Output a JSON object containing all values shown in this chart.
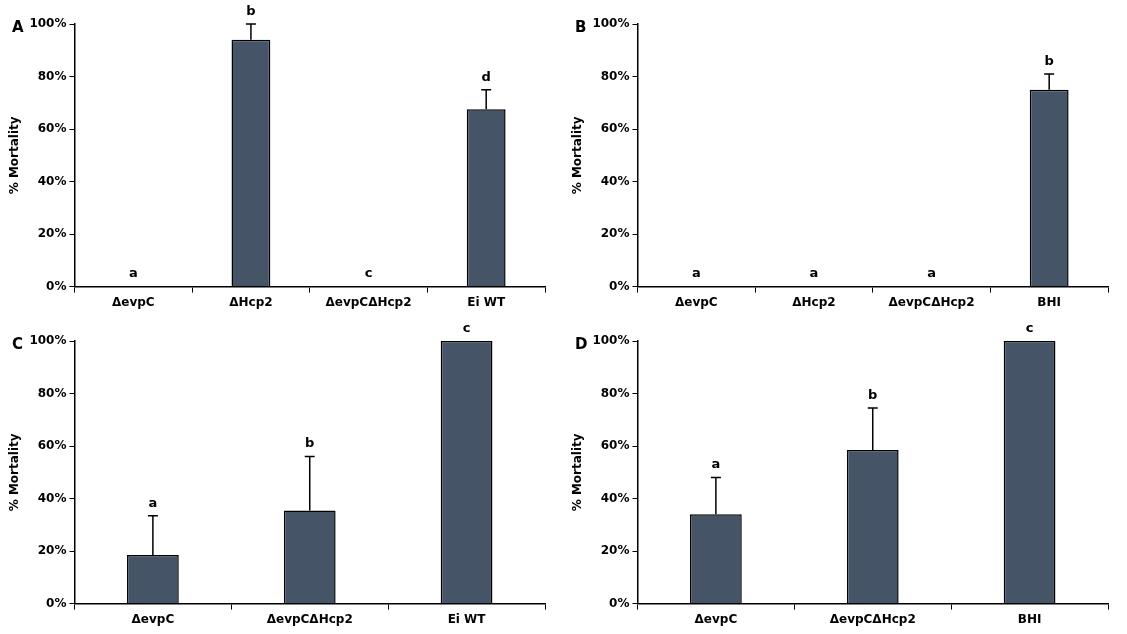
{
  "chart_data": [
    {
      "type": "bar",
      "title": "A",
      "ylabel": "% Mortality",
      "categories": [
        "ΔevpC",
        "ΔHcp2",
        "ΔevpCΔHcp2",
        "Ei WT"
      ],
      "values": [
        0,
        94,
        0,
        67.5
      ],
      "errors": [
        null,
        [
          94,
          100
        ],
        null,
        [
          67.5,
          75
        ]
      ],
      "color": "#465468",
      "ylim": [
        0,
        100
      ],
      "yticks": [
        {
          "value": 0,
          "label": "0%"
        },
        {
          "value": 20,
          "label": "20%"
        },
        {
          "value": 40,
          "label": "40%"
        },
        {
          "value": 60,
          "label": "60%"
        },
        {
          "value": 80,
          "label": "80%"
        },
        {
          "value": 100,
          "label": "100%"
        }
      ],
      "grid": false,
      "legend": false,
      "annotations": [
        {
          "text": "a",
          "x": "ΔevpC",
          "y": 0
        },
        {
          "text": "b",
          "x": "ΔHcp2",
          "y": 100
        },
        {
          "text": "c",
          "x": "ΔevpCΔHcp2",
          "y": 0
        },
        {
          "text": "d",
          "x": "Ei WT",
          "y": 75
        }
      ]
    },
    {
      "type": "bar",
      "title": "B",
      "ylabel": "% Mortality",
      "categories": [
        "ΔevpC",
        "ΔHcp2",
        "ΔevpCΔHcp2",
        "BHI"
      ],
      "values": [
        0,
        0,
        0,
        75
      ],
      "errors": [
        null,
        null,
        null,
        [
          75,
          81
        ]
      ],
      "color": "#465468",
      "ylim": [
        0,
        100
      ],
      "yticks": [
        {
          "value": 0,
          "label": "0%"
        },
        {
          "value": 20,
          "label": "20%"
        },
        {
          "value": 40,
          "label": "40%"
        },
        {
          "value": 60,
          "label": "60%"
        },
        {
          "value": 80,
          "label": "80%"
        },
        {
          "value": 100,
          "label": "100%"
        }
      ],
      "grid": false,
      "legend": false,
      "annotations": [
        {
          "text": "a",
          "x": "ΔevpC",
          "y": 0
        },
        {
          "text": "a",
          "x": "ΔHcp2",
          "y": 0
        },
        {
          "text": "a",
          "x": "ΔevpCΔHcp2",
          "y": 0
        },
        {
          "text": "b",
          "x": "BHI",
          "y": 81
        }
      ]
    },
    {
      "type": "bar",
      "title": "C",
      "ylabel": "% Mortality",
      "categories": [
        "ΔevpC",
        "ΔevpCΔHcp2",
        "Ei WT"
      ],
      "values": [
        18.5,
        35.5,
        100
      ],
      "errors": [
        [
          18.5,
          33.5
        ],
        [
          35.5,
          56
        ],
        null
      ],
      "color": "#465468",
      "ylim": [
        0,
        100
      ],
      "yticks": [
        {
          "value": 0,
          "label": "0%"
        },
        {
          "value": 20,
          "label": "20%"
        },
        {
          "value": 40,
          "label": "40%"
        },
        {
          "value": 60,
          "label": "60%"
        },
        {
          "value": 80,
          "label": "80%"
        },
        {
          "value": 100,
          "label": "100%"
        }
      ],
      "grid": false,
      "legend": false,
      "annotations": [
        {
          "text": "a",
          "x": "ΔevpC",
          "y": 33.5
        },
        {
          "text": "b",
          "x": "ΔevpCΔHcp2",
          "y": 56
        },
        {
          "text": "c",
          "x": "Ei WT",
          "y": 100
        }
      ]
    },
    {
      "type": "bar",
      "title": "D",
      "ylabel": "% Mortality",
      "categories": [
        "ΔevpC",
        "ΔevpCΔHcp2",
        "BHI"
      ],
      "values": [
        34,
        58.5,
        100
      ],
      "errors": [
        [
          34,
          48
        ],
        [
          58.5,
          74.5
        ],
        null
      ],
      "color": "#465468",
      "ylim": [
        0,
        100
      ],
      "yticks": [
        {
          "value": 0,
          "label": "0%"
        },
        {
          "value": 20,
          "label": "20%"
        },
        {
          "value": 40,
          "label": "40%"
        },
        {
          "value": 60,
          "label": "60%"
        },
        {
          "value": 80,
          "label": "80%"
        },
        {
          "value": 100,
          "label": "100%"
        }
      ],
      "grid": false,
      "legend": false,
      "annotations": [
        {
          "text": "a",
          "x": "ΔevpC",
          "y": 48
        },
        {
          "text": "b",
          "x": "ΔevpCΔHcp2",
          "y": 74.5
        },
        {
          "text": "c",
          "x": "BHI",
          "y": 100
        }
      ]
    }
  ]
}
